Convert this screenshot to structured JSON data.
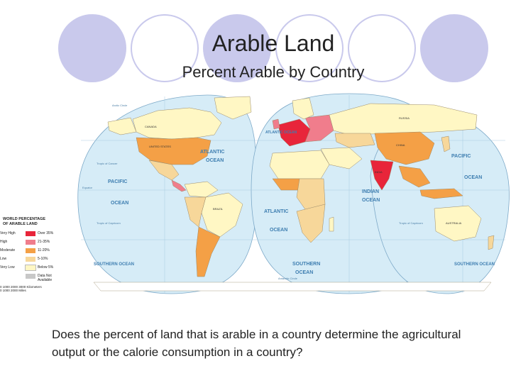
{
  "slide": {
    "title": "Arable Land",
    "subtitle": "Percent Arable by Country",
    "question": "Does the percent of land that is arable in a country determine the agricultural output or the calorie consumption in a country?"
  },
  "colors": {
    "deco_circle": "#c9c9ec",
    "ocean": "#d6ecf7",
    "very_high": "#e8253a",
    "high": "#f07d8c",
    "moderate": "#f4a046",
    "low": "#f7d79a",
    "very_low": "#fff7c4",
    "no_data": "#c8c8c8"
  },
  "map": {
    "ocean_labels": {
      "atlantic_north": "ATLANTIC",
      "atlantic_north_2": "OCEAN",
      "atlantic_south": "ATLANTIC",
      "atlantic_south_2": "OCEAN",
      "atlantic_east": "ATLANTIC OCEAN",
      "pacific_east": "PACIFIC",
      "pacific_east_2": "OCEAN",
      "pacific_west": "PACIFIC",
      "pacific_west_2": "OCEAN",
      "indian": "INDIAN",
      "indian_2": "OCEAN",
      "southern_west": "SOUTHERN OCEAN",
      "southern_center": "SOUTHERN",
      "southern_center_2": "OCEAN",
      "southern_east": "SOUTHERN OCEAN",
      "tropic_cancer": "Tropic of Cancer",
      "tropic_capricorn": "Tropic of Capricorn",
      "equator": "Equator",
      "arctic_circle": "Arctic Circle",
      "antarctic_circle": "Antarctic Circle"
    },
    "country_labels": {
      "canada": "CANADA",
      "usa": "UNITED STATES",
      "brazil": "BRAZIL",
      "russia": "RUSSIA",
      "china": "CHINA",
      "india": "INDIA",
      "australia": "AUSTRALIA"
    }
  },
  "legend": {
    "title_1": "WORLD PERCENTAGE",
    "title_2": "OF ARABLE LAND",
    "items": [
      {
        "label": "Very High",
        "range": "Over 35%",
        "color_key": "very_high"
      },
      {
        "label": "High",
        "range": "21-35%",
        "color_key": "high"
      },
      {
        "label": "Moderate",
        "range": "11-20%",
        "color_key": "moderate"
      },
      {
        "label": "Low",
        "range": "5-10%",
        "color_key": "low"
      },
      {
        "label": "Very Low",
        "range": "Below 5%",
        "color_key": "very_low"
      },
      {
        "label": "",
        "range": "Data Not Available",
        "color_key": "no_data"
      }
    ],
    "scale_line_1": "0      1000   2000    3000 Kilometers",
    "scale_line_2": "0         1000         2000 Miles"
  }
}
